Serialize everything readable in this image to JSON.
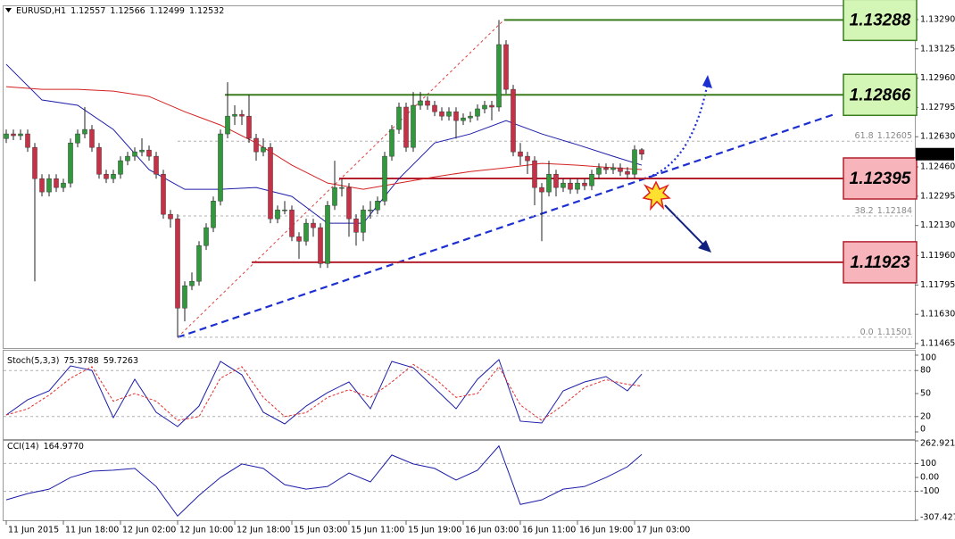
{
  "chart_data": [
    {
      "type": "candlestick",
      "symbol": "EURUSD,H1",
      "xlim": [
        0,
        89
      ],
      "ylim": [
        1.1144,
        1.13365
      ],
      "yticks": [
        {
          "value": 1.1329,
          "label": "1.13290"
        },
        1.13125,
        {
          "value": 1.1296,
          "label": "1.12960"
        },
        1.12795,
        {
          "value": 1.1263,
          "label": "1.12630"
        },
        {
          "value": 1.1246,
          "label": "1.12460"
        },
        1.12295,
        {
          "value": 1.1213,
          "label": "1.12130"
        },
        {
          "value": 1.1196,
          "label": "1.11960"
        },
        1.11795,
        {
          "value": 1.1163,
          "label": "1.11630"
        },
        1.11465
      ],
      "xticks": [
        {
          "value": 0,
          "label": "11 Jun 2015"
        },
        {
          "value": 8,
          "label": "11 Jun 18:00"
        },
        {
          "value": 16,
          "label": "12 Jun 02:00"
        },
        {
          "value": 24,
          "label": "12 Jun 10:00"
        },
        {
          "value": 32,
          "label": "12 Jun 18:00"
        },
        {
          "value": 40,
          "label": "15 Jun 03:00"
        },
        {
          "value": 48,
          "label": "15 Jun 11:00"
        },
        {
          "value": 56,
          "label": "15 Jun 19:00"
        },
        {
          "value": 64,
          "label": "16 Jun 03:00"
        },
        {
          "value": 72,
          "label": "16 Jun 11:00"
        },
        {
          "value": 80,
          "label": "16 Jun 19:00"
        },
        {
          "value": 88,
          "label": "17 Jun 03:00"
        }
      ],
      "up_color": "#2f9a3a",
      "down_color": "#cc2f45",
      "ohlc": [
        [
          1.1262,
          1.12671,
          1.12595,
          1.12646
        ],
        [
          1.12646,
          1.12671,
          1.12611,
          1.12636
        ],
        [
          1.12636,
          1.12671,
          1.12611,
          1.12646
        ],
        [
          1.12646,
          1.12671,
          1.12545,
          1.1257
        ],
        [
          1.1257,
          1.12595,
          1.11816,
          1.12394
        ],
        [
          1.12394,
          1.12419,
          1.12294,
          1.12319
        ],
        [
          1.12319,
          1.12419,
          1.12294,
          1.12394
        ],
        [
          1.12394,
          1.12419,
          1.12319,
          1.12344
        ],
        [
          1.12344,
          1.12394,
          1.12319,
          1.12369
        ],
        [
          1.12369,
          1.1262,
          1.12344,
          1.12595
        ],
        [
          1.12595,
          1.12671,
          1.1257,
          1.12646
        ],
        [
          1.12646,
          1.12797,
          1.12621,
          1.12671
        ],
        [
          1.12671,
          1.12696,
          1.12545,
          1.1257
        ],
        [
          1.1257,
          1.12595,
          1.12394,
          1.12419
        ],
        [
          1.12419,
          1.12444,
          1.12369,
          1.12394
        ],
        [
          1.12394,
          1.12444,
          1.12369,
          1.12419
        ],
        [
          1.12419,
          1.1252,
          1.12394,
          1.12495
        ],
        [
          1.12495,
          1.12545,
          1.1247,
          1.1252
        ],
        [
          1.1252,
          1.1257,
          1.12495,
          1.12545
        ],
        [
          1.12545,
          1.12621,
          1.1252,
          1.12555
        ],
        [
          1.12555,
          1.1258,
          1.12495,
          1.1252
        ],
        [
          1.1252,
          1.12545,
          1.12394,
          1.12419
        ],
        [
          1.12419,
          1.12444,
          1.12168,
          1.12193
        ],
        [
          1.12193,
          1.12218,
          1.12118,
          1.12168
        ],
        [
          1.12168,
          1.12193,
          1.11501,
          1.11665
        ],
        [
          1.11665,
          1.11816,
          1.1159,
          1.11791
        ],
        [
          1.11791,
          1.11866,
          1.11766,
          1.11816
        ],
        [
          1.11816,
          1.12042,
          1.11791,
          1.12017
        ],
        [
          1.12017,
          1.12143,
          1.11992,
          1.12118
        ],
        [
          1.12118,
          1.12293,
          1.12093,
          1.12268
        ],
        [
          1.12268,
          1.12671,
          1.12243,
          1.12646
        ],
        [
          1.12646,
          1.12937,
          1.12621,
          1.12746
        ],
        [
          1.12746,
          1.12807,
          1.12696,
          1.12756
        ],
        [
          1.12756,
          1.12781,
          1.12696,
          1.12746
        ],
        [
          1.12746,
          1.12866,
          1.12596,
          1.12621
        ],
        [
          1.12621,
          1.12646,
          1.12495,
          1.12545
        ],
        [
          1.12545,
          1.12621,
          1.1252,
          1.1257
        ],
        [
          1.1257,
          1.12595,
          1.12143,
          1.12168
        ],
        [
          1.12168,
          1.12243,
          1.12143,
          1.12218
        ],
        [
          1.12218,
          1.12268,
          1.12193,
          1.12218
        ],
        [
          1.12218,
          1.12243,
          1.12042,
          1.12067
        ],
        [
          1.12067,
          1.12092,
          1.11942,
          1.12042
        ],
        [
          1.12042,
          1.12168,
          1.12017,
          1.12143
        ],
        [
          1.12143,
          1.12168,
          1.12067,
          1.12118
        ],
        [
          1.12118,
          1.12143,
          1.11891,
          1.11916
        ],
        [
          1.11916,
          1.12268,
          1.11891,
          1.12243
        ],
        [
          1.12243,
          1.12495,
          1.12218,
          1.12344
        ],
        [
          1.12344,
          1.12394,
          1.12293,
          1.12344
        ],
        [
          1.12344,
          1.12369,
          1.12067,
          1.12168
        ],
        [
          1.12168,
          1.12193,
          1.12017,
          1.12092
        ],
        [
          1.12092,
          1.12243,
          1.12042,
          1.12218
        ],
        [
          1.12218,
          1.12268,
          1.12168,
          1.12218
        ],
        [
          1.12218,
          1.12293,
          1.12193,
          1.12268
        ],
        [
          1.12268,
          1.12545,
          1.12243,
          1.1252
        ],
        [
          1.1252,
          1.12696,
          1.12495,
          1.12671
        ],
        [
          1.12671,
          1.12822,
          1.12646,
          1.12797
        ],
        [
          1.12797,
          1.12822,
          1.12545,
          1.1257
        ],
        [
          1.1257,
          1.12882,
          1.12545,
          1.12807
        ],
        [
          1.12807,
          1.12882,
          1.12782,
          1.12832
        ],
        [
          1.12832,
          1.12857,
          1.12782,
          1.12807
        ],
        [
          1.12807,
          1.12832,
          1.12746,
          1.12771
        ],
        [
          1.12771,
          1.12796,
          1.12721,
          1.12746
        ],
        [
          1.12746,
          1.12796,
          1.12721,
          1.12771
        ],
        [
          1.12771,
          1.12796,
          1.1262,
          1.12721
        ],
        [
          1.12721,
          1.12761,
          1.12696,
          1.12736
        ],
        [
          1.12736,
          1.12771,
          1.12711,
          1.12746
        ],
        [
          1.12746,
          1.12812,
          1.12721,
          1.12787
        ],
        [
          1.12787,
          1.12832,
          1.12762,
          1.12807
        ],
        [
          1.12807,
          1.12832,
          1.12722,
          1.12797
        ],
        [
          1.12797,
          1.13288,
          1.12772,
          1.13149
        ],
        [
          1.13149,
          1.13174,
          1.12872,
          1.12897
        ],
        [
          1.12897,
          1.12922,
          1.1252,
          1.12545
        ],
        [
          1.12545,
          1.12595,
          1.1247,
          1.1252
        ],
        [
          1.1252,
          1.12545,
          1.1242,
          1.12495
        ],
        [
          1.12495,
          1.1252,
          1.12244,
          1.12344
        ],
        [
          1.12344,
          1.12369,
          1.12042,
          1.12319
        ],
        [
          1.12319,
          1.12495,
          1.12294,
          1.12419
        ],
        [
          1.12419,
          1.12444,
          1.12294,
          1.12344
        ],
        [
          1.12344,
          1.12394,
          1.12319,
          1.12369
        ],
        [
          1.12369,
          1.12394,
          1.12309,
          1.12334
        ],
        [
          1.12334,
          1.12394,
          1.12309,
          1.12369
        ],
        [
          1.12369,
          1.12394,
          1.12329,
          1.12354
        ],
        [
          1.12354,
          1.12444,
          1.12329,
          1.12419
        ],
        [
          1.12419,
          1.1248,
          1.12394,
          1.12455
        ],
        [
          1.12455,
          1.1248,
          1.1242,
          1.12445
        ],
        [
          1.12445,
          1.1248,
          1.1242,
          1.12455
        ],
        [
          1.12455,
          1.1248,
          1.12409,
          1.12434
        ],
        [
          1.12434,
          1.12459,
          1.12394,
          1.12419
        ],
        [
          1.12419,
          1.12582,
          1.12394,
          1.12557
        ],
        [
          1.12557,
          1.12566,
          1.12499,
          1.12532
        ]
      ],
      "overlays": [
        {
          "color": "#1c1ca8",
          "x": [
            0,
            5,
            10,
            15,
            20,
            25,
            30,
            35,
            40,
            45,
            50,
            55,
            60,
            65,
            70,
            75,
            80,
            85,
            89
          ],
          "values": [
            1.13038,
            1.12837,
            1.12807,
            1.12671,
            1.12445,
            1.12334,
            1.12334,
            1.12344,
            1.12294,
            1.12143,
            1.12143,
            1.12394,
            1.12595,
            1.12646,
            1.12721,
            1.12646,
            1.12585,
            1.1252,
            1.1247
          ]
        },
        {
          "color": "#d42020",
          "x": [
            0,
            5,
            10,
            15,
            20,
            25,
            30,
            35,
            40,
            45,
            50,
            55,
            60,
            65,
            70,
            75,
            80,
            85,
            89
          ],
          "values": [
            1.12912,
            1.12897,
            1.12897,
            1.12887,
            1.12857,
            1.12771,
            1.12696,
            1.12595,
            1.1247,
            1.12369,
            1.12334,
            1.12369,
            1.12404,
            1.12434,
            1.12455,
            1.1248,
            1.1247,
            1.12455,
            1.12445
          ]
        }
      ],
      "levels": [
        {
          "value": 1.13288,
          "color": "#3b7d1f",
          "fill": "#d3f5b5",
          "text_color": "#3b7d1f"
        },
        {
          "value": 1.12866,
          "color": "#3b7d1f",
          "fill": "#d3f5b5",
          "text_color": "#3b7d1f"
        },
        {
          "value": 1.12395,
          "color": "#b3202e",
          "fill": "#f7b5bb",
          "text_color": "#8a1626"
        },
        {
          "value": 1.11923,
          "color": "#b3202e",
          "fill": "#f7b5bb",
          "text_color": "#8a1626"
        }
      ],
      "fib": [
        {
          "level": 61.8,
          "price": 1.12605
        },
        {
          "level": 38.2,
          "price": 1.12184
        },
        {
          "level": {
            "value": 0,
            "label": "0.0"
          },
          "price": 1.11501
        }
      ]
    },
    {
      "type": "line",
      "title": "Stoch(5,3,3)",
      "xlim": [
        0,
        89
      ],
      "ylim": [
        0,
        100
      ],
      "yticks": [
        0,
        20,
        50,
        80,
        100
      ],
      "guides": [
        20,
        80
      ],
      "x": [
        0,
        3,
        6,
        9,
        12,
        15,
        18,
        21,
        24,
        27,
        30,
        33,
        36,
        39,
        42,
        45,
        48,
        51,
        54,
        57,
        60,
        63,
        66,
        69,
        72,
        75,
        78,
        81,
        84,
        87,
        89
      ],
      "series": [
        {
          "color": "#1c1ca8",
          "dashed": false,
          "values": [
            22.1,
            41.9,
            53.5,
            86,
            80.2,
            18.6,
            68.6,
            25.6,
            7,
            33.7,
            91.9,
            74.4,
            25.6,
            10.5,
            33.7,
            51.2,
            65.1,
            30.2,
            91.9,
            83.7,
            57,
            30.2,
            68.6,
            94.2,
            14,
            11.6,
            53.5,
            65.1,
            72.1,
            53.5,
            75.3788
          ]
        },
        {
          "color": "#e03030",
          "dashed": true,
          "values": [
            22,
            30,
            48,
            70,
            85,
            40,
            50,
            40,
            15,
            20,
            70,
            85,
            45,
            20,
            25,
            45,
            55,
            45,
            65,
            88,
            70,
            45,
            50,
            85,
            35,
            15,
            35,
            58,
            68,
            62,
            59.7263
          ]
        }
      ]
    },
    {
      "type": "line",
      "title": "CCI(14)",
      "xlim": [
        0,
        89
      ],
      "ylim": [
        -307.4273,
        262.9211
      ],
      "yticks": [
        262.9211,
        100,
        {
          "value": 0,
          "label": "0.00"
        },
        -100,
        -307.4273
      ],
      "guides": [
        100,
        -100
      ],
      "x": [
        0,
        3,
        6,
        9,
        12,
        15,
        18,
        21,
        24,
        27,
        30,
        33,
        36,
        39,
        42,
        45,
        48,
        51,
        54,
        57,
        60,
        63,
        66,
        69,
        72,
        75,
        78,
        81,
        84,
        87,
        89
      ],
      "series": [
        {
          "color": "#1c1ca8",
          "dashed": false,
          "values": [
            -161,
            -116,
            -84,
            0,
            45,
            52,
            65,
            -65,
            -277,
            -129,
            0,
            97,
            65,
            -52,
            -84,
            -65,
            32,
            -32,
            161,
            97,
            65,
            -19,
            52,
            226,
            -194,
            -161,
            -84,
            -65,
            0,
            77,
            164.977
          ],
          "value_labels": [
            null,
            null,
            null,
            null,
            null,
            null,
            null,
            null,
            null,
            null,
            null,
            null,
            null,
            null,
            null,
            null,
            null,
            null,
            null,
            null,
            null,
            null,
            null,
            null,
            null,
            null,
            null,
            null,
            null,
            null,
            "164.9770"
          ]
        }
      ]
    }
  ]
}
